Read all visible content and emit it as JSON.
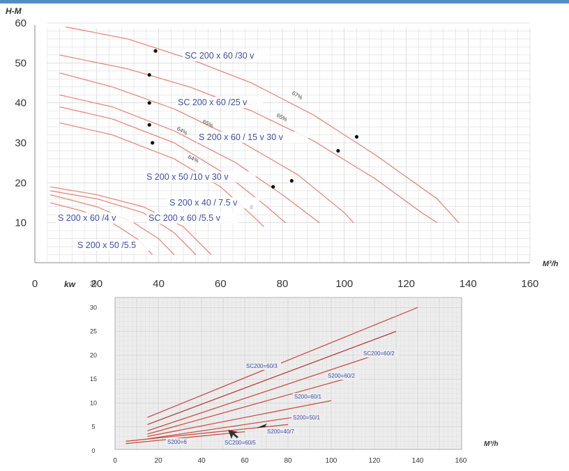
{
  "colors": {
    "curve": "#e58a7a",
    "curve_dark": "#d9534f",
    "curve_line": "#cc4d44",
    "label": "#3b4fb0",
    "grid": "#c9c9c9",
    "grid_light": "#dcdcdc",
    "top_bar": "#4f8fc9",
    "panel_bg": "#ededed"
  },
  "chart_data": [
    {
      "type": "line",
      "ylabel": "H-M",
      "xlabel": "M³/h",
      "xlim": [
        0,
        160
      ],
      "ylim": [
        0,
        60
      ],
      "x_ticks": [
        "0",
        "20",
        "40",
        "60",
        "80",
        "100",
        "120",
        "140",
        "160"
      ],
      "y_ticks": [
        "10",
        "20",
        "30",
        "40",
        "50",
        "60"
      ],
      "grid": true,
      "series": [
        {
          "name": "SC 200 x 60 /30 v",
          "points": [
            [
              10,
              59
            ],
            [
              30,
              56
            ],
            [
              50,
              51
            ],
            [
              70,
              45
            ],
            [
              90,
              37
            ],
            [
              110,
              27
            ],
            [
              130,
              16
            ],
            [
              137,
              10
            ]
          ]
        },
        {
          "name": "SC 200 x 60 /25 v",
          "points": [
            [
              8,
              52
            ],
            [
              30,
              48.5
            ],
            [
              50,
              44
            ],
            [
              70,
              38
            ],
            [
              90,
              30.5
            ],
            [
              110,
              21
            ],
            [
              125,
              12.5
            ],
            [
              130,
              10
            ]
          ]
        },
        {
          "name": "S 200 x 60 / 15 v 30 v",
          "points": [
            [
              8,
              47.5
            ],
            [
              25,
              44
            ],
            [
              45,
              38.5
            ],
            [
              65,
              31
            ],
            [
              85,
              22
            ],
            [
              100,
              12.5
            ],
            [
              103,
              10
            ]
          ]
        },
        {
          "name": "",
          "points": [
            [
              8,
              42
            ],
            [
              25,
              39
            ],
            [
              45,
              33
            ],
            [
              65,
              25
            ],
            [
              80,
              17
            ],
            [
              92,
              10
            ]
          ]
        },
        {
          "name": "",
          "points": [
            [
              8,
              39
            ],
            [
              25,
              36
            ],
            [
              45,
              30
            ],
            [
              62,
              22
            ],
            [
              75,
              14
            ],
            [
              81,
              10
            ]
          ]
        },
        {
          "name": "S 200 x 50 /10 v  30 v",
          "points": [
            [
              8,
              35
            ],
            [
              25,
              32
            ],
            [
              45,
              26
            ],
            [
              60,
              19
            ],
            [
              70,
              12
            ],
            [
              74,
              9
            ]
          ]
        },
        {
          "name": "S 200 x 40 / 7.5 v",
          "points": [
            [
              5,
              19
            ],
            [
              20,
              17
            ],
            [
              35,
              14
            ],
            [
              48,
              9
            ],
            [
              57,
              2
            ]
          ]
        },
        {
          "name": "SC 200 x 60 /5.5 v",
          "points": [
            [
              5,
              18
            ],
            [
              20,
              16
            ],
            [
              35,
              12.5
            ],
            [
              45,
              7.5
            ],
            [
              52,
              2
            ]
          ]
        },
        {
          "name": "S 200 x 60 /4 v",
          "points": [
            [
              5,
              17
            ],
            [
              20,
              14
            ],
            [
              32,
              10
            ],
            [
              40,
              6
            ],
            [
              45,
              2
            ]
          ]
        },
        {
          "name": "S 200 x 50 /5.5",
          "points": [
            [
              5,
              15
            ],
            [
              15,
              13
            ],
            [
              25,
              10
            ],
            [
              33,
              6
            ],
            [
              38,
              2
            ]
          ]
        }
      ],
      "duty_points": [
        [
          39,
          53
        ],
        [
          37,
          47
        ],
        [
          37,
          40
        ],
        [
          37,
          34.5
        ],
        [
          38,
          30
        ],
        [
          104,
          31.5
        ],
        [
          98,
          28
        ],
        [
          83,
          20.5
        ],
        [
          77,
          19
        ],
        [
          70,
          14
        ]
      ],
      "annotations": [
        "67%",
        "65%",
        "65%",
        "64%",
        "64%"
      ]
    },
    {
      "type": "line",
      "ylabel": "kw",
      "xlabel": "M³/h",
      "xlim": [
        0,
        160
      ],
      "ylim": [
        0,
        35
      ],
      "x_ticks": [
        "0",
        "20",
        "40",
        "60",
        "80",
        "100",
        "120",
        "140",
        "160"
      ],
      "y_ticks": [
        "0",
        "5",
        "10",
        "15",
        "20",
        "25",
        "30",
        "35"
      ],
      "grid": true,
      "series": [
        {
          "name": "SC200=60/3",
          "points": [
            [
              15,
              7
            ],
            [
              140,
              30
            ]
          ]
        },
        {
          "name": "SC200=60/2",
          "points": [
            [
              15,
              5.5
            ],
            [
              130,
              25
            ]
          ]
        },
        {
          "name": "S200=60/2",
          "points": [
            [
              15,
              4.2
            ],
            [
              120,
              20
            ]
          ]
        },
        {
          "name": "S200=60/1",
          "points": [
            [
              15,
              3.5
            ],
            [
              110,
              15.5
            ]
          ]
        },
        {
          "name": "S200=50/1",
          "points": [
            [
              15,
              3
            ],
            [
              100,
              10.5
            ]
          ]
        },
        {
          "name": "S200=40/7",
          "points": [
            [
              15,
              2.5
            ],
            [
              90,
              7.5
            ]
          ]
        },
        {
          "name": "SC200=60/5",
          "points": [
            [
              5,
              2
            ],
            [
              80,
              5.5
            ]
          ]
        },
        {
          "name": "S200=6",
          "points": [
            [
              5,
              1.5
            ],
            [
              60,
              4
            ]
          ]
        }
      ]
    }
  ]
}
